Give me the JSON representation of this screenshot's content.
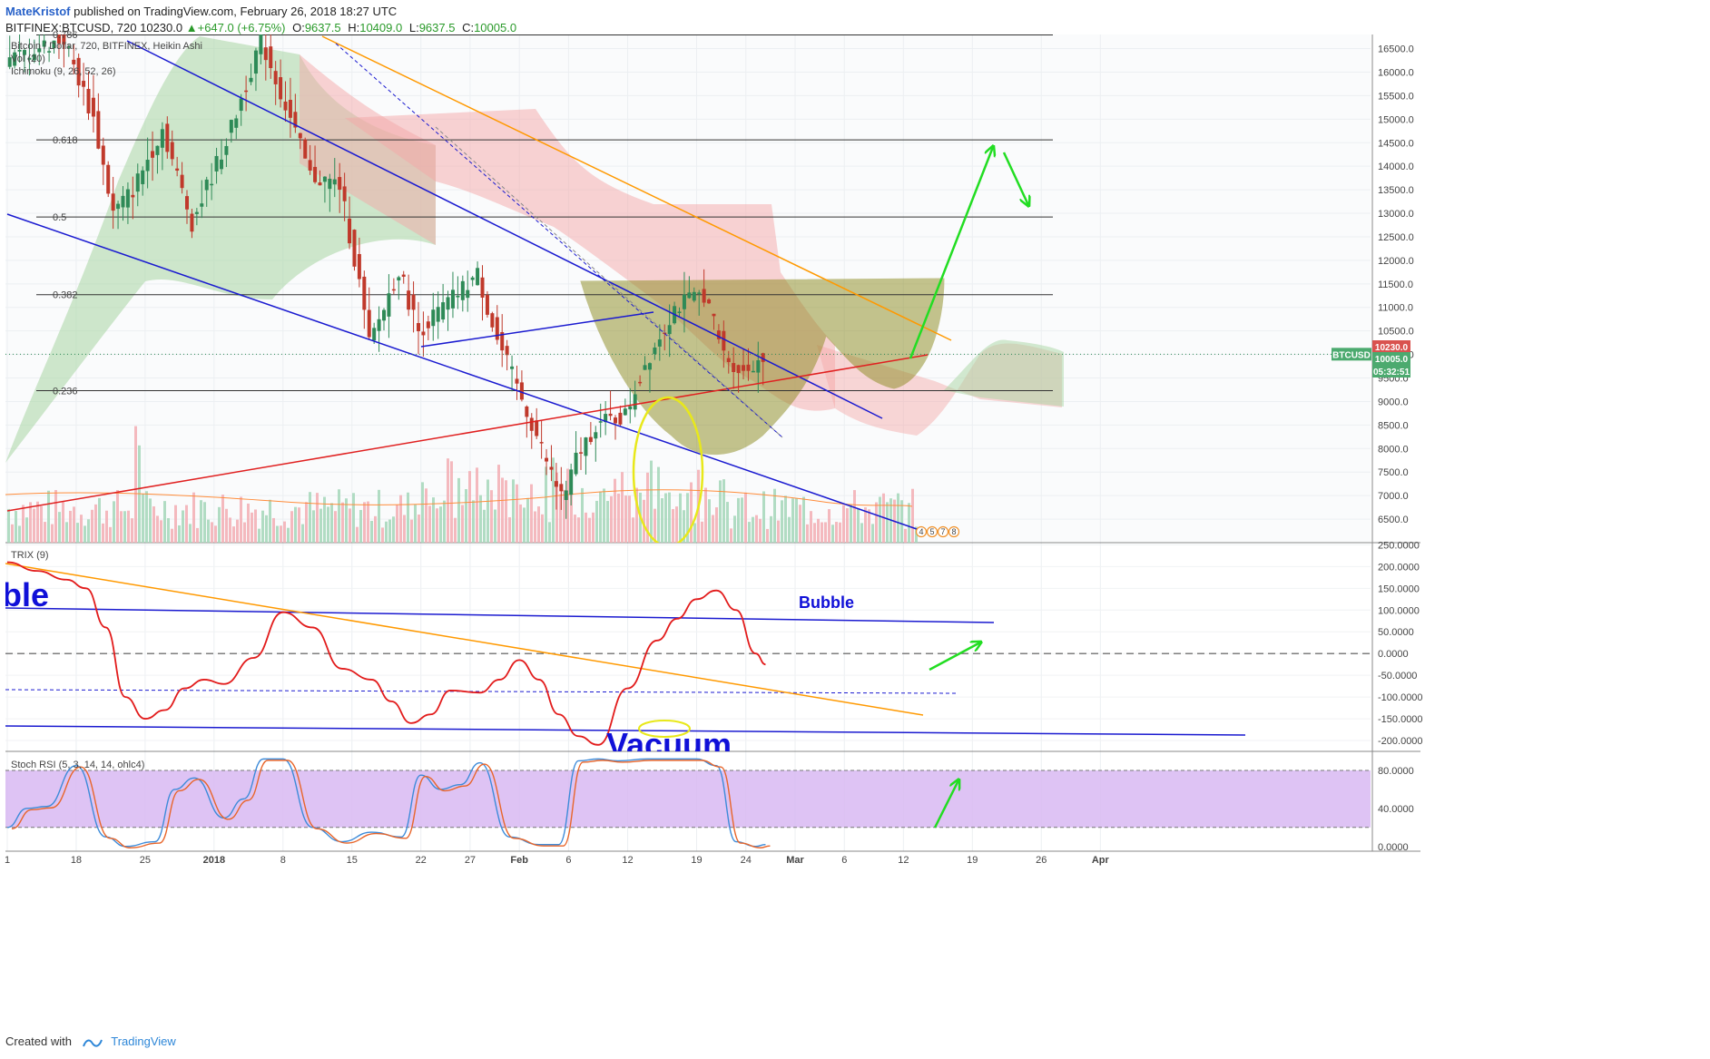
{
  "header": {
    "author": "MateKristof",
    "published": "published on TradingView.com, February 26, 2018 18:27 UTC",
    "symbol": "BITFINEX:BTCUSD, 720",
    "price": "10230.0",
    "change": "+647.0 (+6.75%)",
    "o_label": "O:",
    "o_value": "9637.5",
    "h_label": "H:",
    "h_value": "10409.0",
    "l_label": "L:",
    "l_value": "9637.5",
    "c_label": "C:",
    "c_value": "10005.0"
  },
  "footer": {
    "created": "Created with",
    "brand": "TradingView"
  },
  "colors": {
    "up": "#2e8a57",
    "down": "#c0392b",
    "cloud_red": "#f4a7a7",
    "cloud_green": "#a8d5a2",
    "cup": "#8b8a1f",
    "blue_line": "#1a1ad0",
    "orange_line": "#ff9900",
    "red_line": "#e02020",
    "arrow": "#22dd22",
    "stoch_band": "#d8b8f2"
  },
  "chart_data": [
    {
      "type": "candlestick",
      "title": "Bitcoin / Dollar, 720, BITFINEX, Heikin Ashi",
      "indicators": [
        "Vol (20)",
        "Ichimoku (9, 26, 52, 26)"
      ],
      "symbol_tag": "BTCUSD",
      "price_tags": [
        "10230.0",
        "10005.0",
        "05:32:51"
      ],
      "ylim": [
        6000,
        16800
      ],
      "y_ticks": [
        6500,
        7000,
        7500,
        8000,
        8500,
        9000,
        9500,
        10000,
        10500,
        11000,
        11500,
        12000,
        12500,
        13000,
        13500,
        14000,
        14500,
        15000,
        15500,
        16000,
        16500
      ],
      "y_tick_labels": [
        "6500.0",
        "7000.0",
        "7500.0",
        "8000.0",
        "8500.0",
        "9000.0",
        "9500.0",
        "10000.0",
        "10500.0",
        "11000.0",
        "11500.0",
        "12000.0",
        "12500.0",
        "13000.0",
        "13500.0",
        "14000.0",
        "14500.0",
        "15000.0",
        "15500.0",
        "16000.0",
        "16500.0"
      ],
      "x_ticks": [
        "1",
        "18",
        "25",
        "2018",
        "8",
        "15",
        "22",
        "27",
        "Feb",
        "6",
        "12",
        "19",
        "24",
        "Mar",
        "6",
        "12",
        "19",
        "26",
        "Apr"
      ],
      "fib_levels": [
        {
          "label": "0.618",
          "value": 14560
        },
        {
          "label": "0.5",
          "value": 12920
        },
        {
          "label": "0.382",
          "value": 11270
        },
        {
          "label": "0.236",
          "value": 9230
        }
      ],
      "fib_top_label": "0.786",
      "event_markers": [
        "4",
        "5",
        "7",
        "8"
      ],
      "price_path": [
        {
          "date": "2017-12-11",
          "close": 16200
        },
        {
          "date": "2017-12-14",
          "close": 16500
        },
        {
          "date": "2017-12-17",
          "close": 16700
        },
        {
          "date": "2017-12-20",
          "close": 15000
        },
        {
          "date": "2017-12-22",
          "close": 13000
        },
        {
          "date": "2017-12-24",
          "close": 13500
        },
        {
          "date": "2017-12-27",
          "close": 14800
        },
        {
          "date": "2017-12-30",
          "close": 12800
        },
        {
          "date": "2018-01-03",
          "close": 14800
        },
        {
          "date": "2018-01-06",
          "close": 16700
        },
        {
          "date": "2018-01-09",
          "close": 15000
        },
        {
          "date": "2018-01-11",
          "close": 13800
        },
        {
          "date": "2018-01-14",
          "close": 13600
        },
        {
          "date": "2018-01-16",
          "close": 11500
        },
        {
          "date": "2018-01-17",
          "close": 10200
        },
        {
          "date": "2018-01-20",
          "close": 11800
        },
        {
          "date": "2018-01-22",
          "close": 10500
        },
        {
          "date": "2018-01-25",
          "close": 11100
        },
        {
          "date": "2018-01-28",
          "close": 11700
        },
        {
          "date": "2018-01-30",
          "close": 10300
        },
        {
          "date": "2018-02-02",
          "close": 8800
        },
        {
          "date": "2018-02-05",
          "close": 7200
        },
        {
          "date": "2018-02-06",
          "close": 7000
        },
        {
          "date": "2018-02-07",
          "close": 7800
        },
        {
          "date": "2018-02-09",
          "close": 8500
        },
        {
          "date": "2018-02-12",
          "close": 8700
        },
        {
          "date": "2018-02-14",
          "close": 9800
        },
        {
          "date": "2018-02-17",
          "close": 11000
        },
        {
          "date": "2018-02-20",
          "close": 11300
        },
        {
          "date": "2018-02-22",
          "close": 10000
        },
        {
          "date": "2018-02-24",
          "close": 9600
        },
        {
          "date": "2018-02-26",
          "close": 10005
        }
      ],
      "annotations": [
        "cup-and-handle shading",
        "descending channel",
        "yellow circled low",
        "green projection arrows"
      ]
    },
    {
      "type": "line",
      "title": "TRIX (9)",
      "ylim": [
        -225,
        255
      ],
      "y_ticks": [
        -200,
        -150,
        -100,
        -50,
        0,
        50,
        100,
        150,
        200,
        250
      ],
      "y_tick_labels": [
        "-200.0000",
        "-150.0000",
        "-100.0000",
        "-50.0000",
        "0.0000",
        "50.0000",
        "100.0000",
        "150.0000",
        "200.0000",
        "250.0000"
      ],
      "text_labels": [
        "bble",
        "Bubble",
        "Vacuum"
      ],
      "series": [
        {
          "x": [
            "2017-12-11",
            "2017-12-14",
            "2017-12-17",
            "2017-12-19",
            "2017-12-21",
            "2017-12-23",
            "2017-12-25",
            "2017-12-27",
            "2017-12-29",
            "2017-12-31",
            "2018-01-02",
            "2018-01-05",
            "2018-01-08",
            "2018-01-11",
            "2018-01-14",
            "2018-01-17",
            "2018-01-19",
            "2018-01-21",
            "2018-01-23",
            "2018-01-25",
            "2018-01-28",
            "2018-01-30",
            "2018-02-01",
            "2018-02-03",
            "2018-02-05",
            "2018-02-07",
            "2018-02-09",
            "2018-02-12",
            "2018-02-15",
            "2018-02-17",
            "2018-02-19",
            "2018-02-21",
            "2018-02-23",
            "2018-02-25",
            "2018-02-26"
          ],
          "y": [
            210,
            190,
            170,
            150,
            60,
            -100,
            -150,
            -130,
            -80,
            -60,
            -70,
            -10,
            95,
            60,
            -35,
            -60,
            -110,
            -160,
            -140,
            -85,
            -90,
            -60,
            -15,
            -60,
            -140,
            -190,
            -210,
            -80,
            30,
            80,
            125,
            145,
            100,
            0,
            -25
          ]
        }
      ]
    },
    {
      "type": "line",
      "title": "Stoch RSI (5, 3, 14, 14, ohlc4)",
      "ylim": [
        -5,
        100
      ],
      "y_ticks": [
        0,
        40,
        80
      ],
      "y_tick_labels": [
        "0.0000",
        "40.0000",
        "80.0000"
      ],
      "band": [
        20,
        80
      ],
      "series": [
        {
          "x": [
            "2017-12-11",
            "2017-12-13",
            "2017-12-15",
            "2017-12-18",
            "2017-12-21",
            "2017-12-23",
            "2017-12-26",
            "2017-12-28",
            "2017-12-30",
            "2018-01-02",
            "2018-01-04",
            "2018-01-06",
            "2018-01-08",
            "2018-01-11",
            "2018-01-14",
            "2018-01-17",
            "2018-01-20",
            "2018-01-22",
            "2018-01-24",
            "2018-01-26",
            "2018-01-28",
            "2018-01-31",
            "2018-02-03",
            "2018-02-05",
            "2018-02-07",
            "2018-02-09",
            "2018-02-11",
            "2018-02-14",
            "2018-02-17",
            "2018-02-19",
            "2018-02-21",
            "2018-02-23",
            "2018-02-25",
            "2018-02-26"
          ],
          "y": [
            20,
            40,
            42,
            85,
            10,
            0,
            5,
            60,
            72,
            30,
            50,
            92,
            92,
            20,
            5,
            15,
            10,
            75,
            60,
            65,
            88,
            10,
            2,
            2,
            90,
            92,
            90,
            92,
            92,
            92,
            85,
            5,
            0,
            2
          ]
        }
      ]
    }
  ]
}
